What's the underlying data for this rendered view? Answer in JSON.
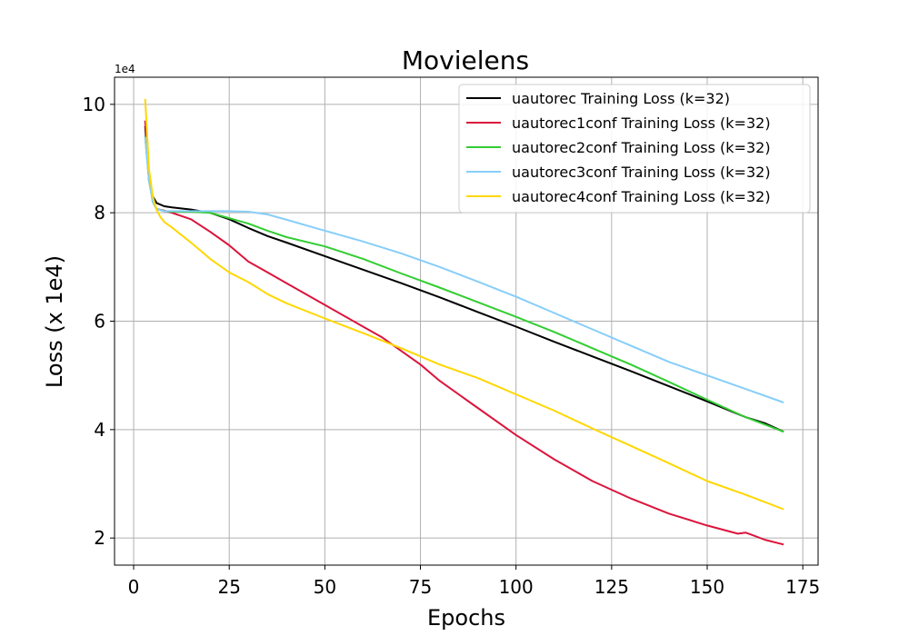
{
  "chart_data": {
    "type": "line",
    "title": "Movielens",
    "xlabel": "Epochs",
    "ylabel": "Loss (x 1e4)",
    "y_offset_label": "1e4",
    "xlim": [
      -5,
      179
    ],
    "ylim": [
      1.5,
      10.5
    ],
    "xticks": [
      0,
      25,
      50,
      75,
      100,
      125,
      150,
      175
    ],
    "yticks": [
      2,
      4,
      6,
      8,
      10
    ],
    "grid": true,
    "legend_position": "upper-right",
    "series": [
      {
        "name": "uautorec Training Loss (k=32)",
        "color": "#000000",
        "x": [
          3,
          4,
          5,
          6,
          8,
          10,
          15,
          20,
          25,
          30,
          35,
          40,
          50,
          60,
          70,
          80,
          90,
          100,
          110,
          120,
          130,
          140,
          150,
          160,
          165,
          170
        ],
        "y": [
          9.6,
          8.6,
          8.3,
          8.18,
          8.12,
          8.1,
          8.06,
          8.0,
          7.88,
          7.72,
          7.57,
          7.45,
          7.2,
          6.95,
          6.7,
          6.44,
          6.17,
          5.9,
          5.62,
          5.35,
          5.08,
          4.8,
          4.52,
          4.23,
          4.12,
          3.96
        ]
      },
      {
        "name": "uautorec1conf Training Loss (k=32)",
        "color": "#dc143c",
        "x": [
          3,
          4,
          5,
          6,
          8,
          10,
          15,
          20,
          25,
          30,
          35,
          40,
          50,
          60,
          65,
          70,
          75,
          80,
          90,
          100,
          110,
          120,
          130,
          140,
          150,
          158,
          160,
          162,
          165,
          170
        ],
        "y": [
          9.7,
          8.7,
          8.2,
          8.07,
          8.04,
          8.0,
          7.88,
          7.65,
          7.4,
          7.1,
          6.9,
          6.7,
          6.3,
          5.9,
          5.7,
          5.45,
          5.2,
          4.9,
          4.4,
          3.9,
          3.45,
          3.05,
          2.73,
          2.45,
          2.23,
          2.08,
          2.1,
          2.05,
          1.97,
          1.88
        ]
      },
      {
        "name": "uautorec2conf Training Loss (k=32)",
        "color": "#32cd32",
        "x": [
          3,
          4,
          5,
          6,
          8,
          10,
          15,
          20,
          25,
          30,
          35,
          40,
          50,
          60,
          70,
          80,
          90,
          100,
          110,
          120,
          130,
          140,
          150,
          160,
          170
        ],
        "y": [
          9.4,
          8.6,
          8.2,
          8.07,
          8.03,
          8.02,
          8.02,
          8.0,
          7.9,
          7.8,
          7.67,
          7.55,
          7.38,
          7.15,
          6.88,
          6.62,
          6.35,
          6.08,
          5.8,
          5.5,
          5.2,
          4.88,
          4.55,
          4.23,
          3.96
        ]
      },
      {
        "name": "uautorec3conf Training Loss (k=32)",
        "color": "#87cefa",
        "x": [
          3,
          4,
          5,
          6,
          8,
          10,
          15,
          20,
          25,
          30,
          35,
          40,
          50,
          60,
          70,
          80,
          90,
          100,
          110,
          120,
          130,
          140,
          150,
          160,
          170
        ],
        "y": [
          9.4,
          8.6,
          8.2,
          8.07,
          8.03,
          8.03,
          8.03,
          8.03,
          8.03,
          8.02,
          7.97,
          7.87,
          7.67,
          7.47,
          7.25,
          7.0,
          6.73,
          6.45,
          6.15,
          5.85,
          5.55,
          5.25,
          5.0,
          4.75,
          4.5
        ]
      },
      {
        "name": "uautorec4conf Training Loss (k=32)",
        "color": "#ffd700",
        "x": [
          3,
          4,
          5,
          6,
          7,
          8,
          10,
          15,
          20,
          25,
          30,
          35,
          40,
          50,
          60,
          70,
          80,
          90,
          100,
          110,
          120,
          130,
          140,
          150,
          160,
          170
        ],
        "y": [
          10.1,
          8.8,
          8.3,
          8.05,
          7.92,
          7.83,
          7.73,
          7.45,
          7.15,
          6.9,
          6.72,
          6.5,
          6.33,
          6.05,
          5.78,
          5.5,
          5.2,
          4.95,
          4.65,
          4.35,
          4.02,
          3.7,
          3.38,
          3.05,
          2.8,
          2.53
        ]
      }
    ]
  }
}
